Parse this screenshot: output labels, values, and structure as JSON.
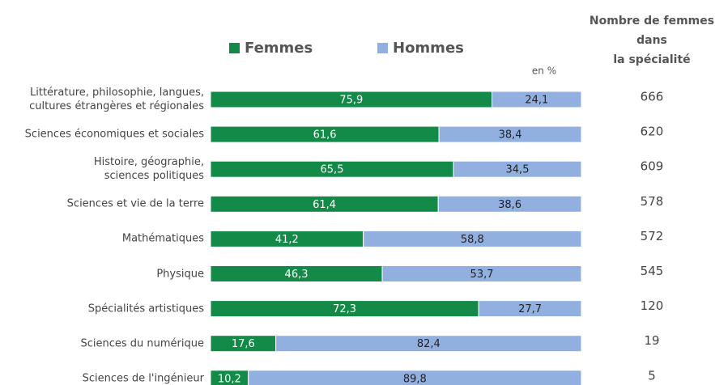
{
  "chart_data": {
    "type": "stacked-bar-horizontal",
    "categories": [
      "Littérature, philosophie, langues,\ncultures étrangères et régionales",
      "Sciences économiques et sociales",
      "Histoire, géographie,\nsciences politiques",
      "Sciences et vie de la terre",
      "Mathématiques",
      "Physique",
      "Spécialités artistiques",
      "Sciences du numérique",
      "Sciences de l'ingénieur"
    ],
    "series": [
      {
        "name": "Femmes",
        "color": "#138a47",
        "values": [
          75.9,
          61.6,
          65.5,
          61.4,
          41.2,
          46.3,
          72.3,
          17.6,
          10.2
        ],
        "value_labels": [
          "75,9",
          "61,6",
          "65,5",
          "61,4",
          "41,2",
          "46,3",
          "72,3",
          "17,6",
          "10,2"
        ]
      },
      {
        "name": "Hommes",
        "color": "#91b0e0",
        "values": [
          24.1,
          38.4,
          34.5,
          38.6,
          58.8,
          53.7,
          27.7,
          82.4,
          89.8
        ],
        "value_labels": [
          "24,1",
          "38,4",
          "34,5",
          "38,6",
          "58,8",
          "53,7",
          "27,7",
          "82,4",
          "89,8"
        ]
      }
    ],
    "xlim": [
      0,
      100
    ],
    "annotation": "en %",
    "side_column": {
      "header": "Nombre de femmes\ndans\nla spécialité",
      "values": [
        666,
        620,
        609,
        578,
        572,
        545,
        120,
        19,
        5
      ]
    }
  }
}
